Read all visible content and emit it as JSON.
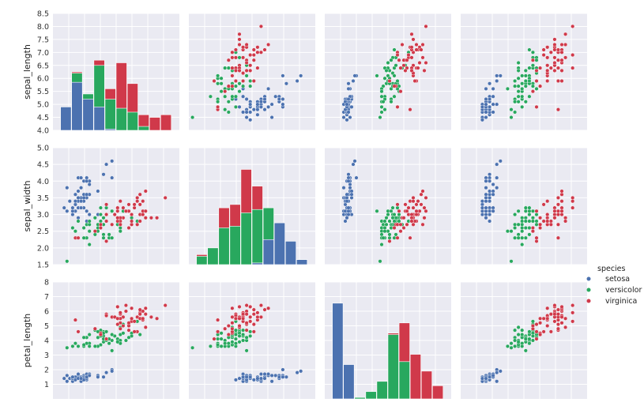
{
  "chart_data": {
    "type": "pairplot",
    "variables": [
      "sepal_length",
      "sepal_width",
      "petal_length"
    ],
    "y_ranges": {
      "sepal_length": [
        4.0,
        8.5
      ],
      "sepal_width": [
        1.5,
        5.0
      ],
      "petal_length": [
        0,
        8
      ]
    },
    "y_ticks": {
      "sepal_length": [
        "8.5",
        "8.0",
        "7.5",
        "7.0",
        "6.5",
        "6.0",
        "5.5",
        "5.0",
        "4.5",
        "4.0"
      ],
      "sepal_width": [
        "5.0",
        "4.5",
        "4.0",
        "3.5",
        "3.0",
        "2.5",
        "2.0",
        "1.5"
      ],
      "petal_length": [
        "8",
        "7",
        "6",
        "5",
        "4",
        "3",
        "2",
        "1"
      ]
    },
    "y_tick_values": {
      "sepal_length": [
        8.5,
        8.0,
        7.5,
        7.0,
        6.5,
        6.0,
        5.5,
        5.0,
        4.5,
        4.0
      ],
      "sepal_width": [
        5.0,
        4.5,
        4.0,
        3.5,
        3.0,
        2.5,
        2.0,
        1.5
      ],
      "petal_length": [
        8,
        7,
        6,
        5,
        4,
        3,
        2,
        1
      ]
    },
    "x_ranges": {
      "sepal_length": [
        4.0,
        8.5
      ],
      "sepal_width": [
        1.5,
        5.0
      ],
      "petal_length": [
        0,
        8
      ],
      "petal_width": [
        -0.5,
        3.0
      ]
    },
    "histograms": [
      {
        "variable": "sepal_length",
        "bin_edges": [
          4.3,
          4.66,
          5.02,
          5.38,
          5.74,
          6.1,
          6.46,
          6.82,
          7.18,
          7.54,
          7.9
        ],
        "stacked_tops": {
          "setosa": [
            4.9,
            5.85,
            5.2,
            4.9,
            4.05,
            4.0,
            4.0,
            4.0,
            4.0,
            4.0
          ],
          "versicolor": [
            4.9,
            6.2,
            5.4,
            6.5,
            5.2,
            4.85,
            4.7,
            4.15,
            4.0,
            4.0
          ],
          "virginica": [
            4.9,
            6.25,
            5.4,
            6.7,
            5.6,
            6.6,
            5.8,
            4.6,
            4.5,
            4.6
          ]
        }
      },
      {
        "variable": "sepal_width",
        "bin_edges": [
          1.7,
          1.94,
          2.18,
          2.42,
          2.66,
          2.9,
          3.14,
          3.38,
          3.62,
          3.86,
          4.1
        ],
        "stacked_tops": {
          "setosa": [
            1.5,
            1.5,
            1.5,
            1.5,
            1.5,
            1.55,
            2.25,
            2.75,
            2.2,
            1.65
          ],
          "versicolor": [
            1.75,
            2.0,
            2.6,
            2.65,
            3.05,
            3.15,
            3.2,
            2.3,
            2.2,
            1.65
          ],
          "virginica": [
            1.8,
            2.0,
            3.2,
            3.3,
            4.35,
            3.85,
            2.4,
            2.3,
            2.2,
            1.65
          ]
        }
      },
      {
        "variable": "petal_length",
        "bin_edges": [
          1.0,
          1.59,
          2.18,
          2.77,
          3.36,
          3.95,
          4.54,
          5.13,
          5.72,
          6.31,
          6.9
        ],
        "stacked_tops": {
          "setosa": [
            6.55,
            2.35,
            0,
            0,
            0,
            0,
            0,
            0,
            0,
            0
          ],
          "versicolor": [
            6.55,
            2.35,
            0.1,
            0.5,
            1.2,
            4.4,
            2.55,
            0,
            0,
            0
          ],
          "virginica": [
            6.55,
            2.35,
            0.1,
            0.5,
            1.2,
            4.5,
            5.2,
            3.05,
            1.9,
            0.9
          ]
        }
      }
    ],
    "legend": {
      "title": "species",
      "entries": [
        {
          "name": "setosa",
          "color": "#4c72b0"
        },
        {
          "name": "versicolor",
          "color": "#55a868"
        },
        {
          "name": "virginica",
          "color": "#c44e52"
        }
      ],
      "placement": "right"
    },
    "colors": {
      "setosa": "#4c72b0",
      "versicolor": "#28a85e",
      "virginica": "#d0394a",
      "panel_background": "#eaeaf2",
      "grid": "#ffffff"
    },
    "grid": true
  }
}
